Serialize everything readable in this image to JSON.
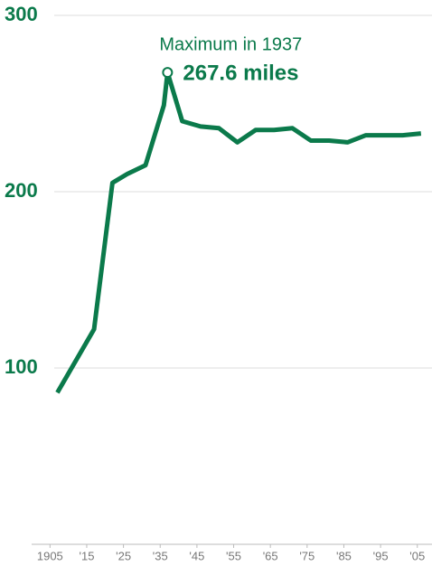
{
  "chart_data": {
    "type": "line",
    "annotation_title": "Maximum in 1937",
    "annotation_label": "267.6 miles",
    "x": [
      1907,
      1917,
      1922,
      1926,
      1931,
      1936,
      1937,
      1941,
      1946,
      1951,
      1956,
      1961,
      1966,
      1971,
      1976,
      1981,
      1986,
      1991,
      1996,
      2001,
      2006
    ],
    "series": [
      {
        "color": "#0b7a4b",
        "values": [
          86,
          122,
          205,
          210,
          215,
          249,
          267.6,
          240,
          237,
          236,
          228,
          235,
          235,
          236,
          229,
          229,
          228,
          232,
          232,
          232,
          233
        ]
      }
    ],
    "xlim": [
      1900,
      2009
    ],
    "xticks": [
      {
        "value": 1905,
        "label": "1905"
      },
      {
        "value": 1915,
        "label": "'15"
      },
      {
        "value": 1925,
        "label": "'25"
      },
      {
        "value": 1935,
        "label": "'35"
      },
      {
        "value": 1945,
        "label": "'45"
      },
      {
        "value": 1955,
        "label": "'55"
      },
      {
        "value": 1965,
        "label": "'65"
      },
      {
        "value": 1975,
        "label": "'75"
      },
      {
        "value": 1985,
        "label": "'85"
      },
      {
        "value": 1995,
        "label": "'95"
      },
      {
        "value": 2005,
        "label": "'05"
      }
    ],
    "ylim": [
      0,
      300
    ],
    "yticks": [
      100,
      200,
      300
    ],
    "grid": true
  }
}
